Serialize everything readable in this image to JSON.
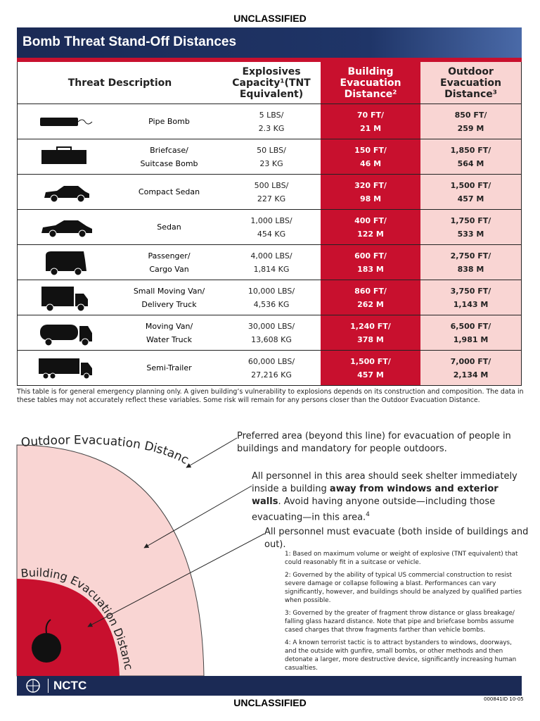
{
  "classification_top": "UNCLASSIFIED",
  "header": {
    "title": "Bomb Threat Stand-Off Distances"
  },
  "table": {
    "columns": [
      [
        "Threat Description"
      ],
      [
        "Explosives",
        "Capacity¹(TNT",
        "Equivalent)"
      ],
      [
        "Building",
        "Evacuation",
        "Distance²"
      ],
      [
        "Outdoor",
        "Evacuation",
        "Distance³"
      ]
    ],
    "rows": [
      {
        "description": [
          "Pipe Bomb"
        ],
        "explosives": [
          "5 LBS/",
          "2.3 KG"
        ],
        "building": [
          "70 FT/",
          "21 M"
        ],
        "outdoor": [
          "850 FT/",
          "259 M"
        ]
      },
      {
        "description": [
          "Briefcase/",
          "Suitcase Bomb"
        ],
        "explosives": [
          "50 LBS/",
          "23 KG"
        ],
        "building": [
          "150 FT/",
          "46 M"
        ],
        "outdoor": [
          "1,850 FT/",
          "564 M"
        ]
      },
      {
        "description": [
          "Compact Sedan"
        ],
        "explosives": [
          "500 LBS/",
          "227 KG"
        ],
        "building": [
          "320 FT/",
          "98 M"
        ],
        "outdoor": [
          "1,500 FT/",
          "457 M"
        ]
      },
      {
        "description": [
          "Sedan"
        ],
        "explosives": [
          "1,000 LBS/",
          "454 KG"
        ],
        "building": [
          "400 FT/",
          "122 M"
        ],
        "outdoor": [
          "1,750 FT/",
          "533 M"
        ]
      },
      {
        "description": [
          "Passenger/",
          "Cargo Van"
        ],
        "explosives": [
          "4,000 LBS/",
          "1,814 KG"
        ],
        "building": [
          "600 FT/",
          "183 M"
        ],
        "outdoor": [
          "2,750 FT/",
          "838 M"
        ]
      },
      {
        "description": [
          "Small Moving Van/",
          "Delivery Truck"
        ],
        "explosives": [
          "10,000 LBS/",
          "4,536 KG"
        ],
        "building": [
          "860 FT/",
          "262 M"
        ],
        "outdoor": [
          "3,750 FT/",
          "1,143 M"
        ]
      },
      {
        "description": [
          "Moving Van/",
          "Water Truck"
        ],
        "explosives": [
          "30,000 LBS/",
          "13,608 KG"
        ],
        "building": [
          "1,240 FT/",
          "378 M"
        ],
        "outdoor": [
          "6,500 FT/",
          "1,981 M"
        ]
      },
      {
        "description": [
          "Semi-Trailer"
        ],
        "explosives": [
          "60,000 LBS/",
          "27,216 KG"
        ],
        "building": [
          "1,500 FT/",
          "457 M"
        ],
        "outdoor": [
          "7,000 FT/",
          "2,134 M"
        ]
      }
    ]
  },
  "table_note": "This table is for general emergency planning only. A given building’s vulnerability to explosions depends on its construction and composition. The data in these tables may not accurately reflect these variables. Some risk will remain for any persons closer than the Outdoor Evacuation Distance.",
  "diagram": {
    "outdoor_label": "Outdoor Evacuation Distance",
    "building_label": "Building Evacuation Distance",
    "callouts": [
      [
        "Preferred area (beyond this line) for evacuation of people in buildings and mandatory for people outdoors."
      ],
      [
        "All personnel in this area should seek shelter immediately inside a building ",
        "away from windows and exterior walls",
        ". Avoid having anyone outside—including those evacuating—in this area.",
        "4"
      ],
      [
        "All personnel must evacuate (both inside of buildings and out)."
      ]
    ]
  },
  "footnotes": [
    "1: Based on maximum volume or weight of explosive (TNT equivalent) that could reasonably fit in a suitcase or vehicle.",
    "2: Governed by the ability of typical US commercial construction to resist severe damage or collapse following a blast.  Performances can vary significantly, however, and buildings should be analyzed by qualified parties when possible.",
    "3: Governed by the greater of fragment throw distance or glass breakage/ falling glass hazard distance. Note that pipe and briefcase bombs assume cased charges that throw fragments farther than vehicle bombs.",
    "4: A known terrorist tactic is to attract bystanders to windows, doorways, and the outside with gunfire, small bombs, or other methods and then detonate a larger, more destructive device, significantly increasing human casualties."
  ],
  "footer": {
    "logo": "NCTC",
    "doc_id": "000841ID 10-05"
  },
  "classification_bottom": "UNCLASSIFIED"
}
